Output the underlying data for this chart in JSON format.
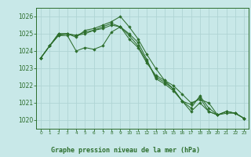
{
  "title": "Graphe pression niveau de la mer (hPa)",
  "bg_color": "#c8e8e8",
  "grid_color": "#b0d4d4",
  "line_color": "#2d6e2d",
  "marker_color": "#2d6e2d",
  "ylim": [
    1019.5,
    1026.5
  ],
  "xlim": [
    -0.5,
    23.5
  ],
  "yticks": [
    1020,
    1021,
    1022,
    1023,
    1024,
    1025,
    1026
  ],
  "xticks": [
    0,
    1,
    2,
    3,
    4,
    5,
    6,
    7,
    8,
    9,
    10,
    11,
    12,
    13,
    14,
    15,
    16,
    17,
    18,
    19,
    20,
    21,
    22,
    23
  ],
  "series": [
    [
      1023.6,
      1024.3,
      1024.9,
      1024.9,
      1024.0,
      1024.2,
      1024.1,
      1024.3,
      1025.1,
      1025.4,
      1024.7,
      1024.2,
      1023.3,
      1022.6,
      1022.3,
      1021.8,
      1021.1,
      1020.5,
      1021.0,
      1020.5,
      1020.3,
      1020.5,
      1020.4,
      1020.1
    ],
    [
      1023.6,
      1024.3,
      1025.0,
      1025.0,
      1024.8,
      1025.2,
      1025.3,
      1025.5,
      1025.7,
      1026.0,
      1025.4,
      1024.7,
      1023.8,
      1023.0,
      1022.3,
      1022.0,
      1021.5,
      1021.0,
      1021.2,
      1021.0,
      1020.3,
      1020.4,
      1020.4,
      1020.1
    ],
    [
      1023.6,
      1024.3,
      1024.9,
      1025.0,
      1024.9,
      1025.0,
      1025.2,
      1025.3,
      1025.5,
      1025.4,
      1025.0,
      1024.5,
      1023.5,
      1022.4,
      1022.1,
      1021.7,
      1021.1,
      1020.9,
      1021.3,
      1020.5,
      1020.3,
      1020.5,
      1020.4,
      1020.1
    ],
    [
      1023.6,
      1024.3,
      1025.0,
      1025.0,
      1024.9,
      1025.1,
      1025.2,
      1025.4,
      1025.6,
      1025.4,
      1024.9,
      1024.3,
      1023.4,
      1022.5,
      1022.2,
      1021.8,
      1021.1,
      1020.7,
      1021.4,
      1020.7,
      1020.3,
      1020.5,
      1020.4,
      1020.1
    ]
  ],
  "xlabel_fontsize": 6.0,
  "ytick_fontsize": 5.5,
  "xtick_fontsize": 4.2
}
